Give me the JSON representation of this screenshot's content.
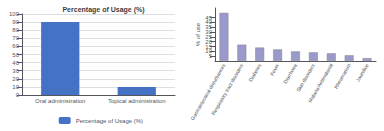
{
  "chart_data": [
    {
      "type": "bar",
      "title": "Percentage of Usage (%)",
      "categories": [
        "Oral administration",
        "Topical administration"
      ],
      "series": [
        {
          "name": "Percentage of Usage (%)",
          "color": "#4472C4",
          "values": [
            90,
            10
          ]
        }
      ],
      "ylim": [
        0,
        100
      ],
      "yticks": [
        0,
        10,
        20,
        30,
        40,
        50,
        60,
        70,
        80,
        90,
        100
      ],
      "grid": true,
      "legend": "bottom"
    },
    {
      "type": "bar",
      "ylabel": "% of use",
      "categories": [
        "Gastrointestinal disturbances",
        "Respiratory tract disorders",
        "Diabetes",
        "Fever",
        "Diarrhoea",
        "Skin disorders",
        "Malaria/Antimalarial",
        "Rheumatism",
        "Jaundice"
      ],
      "values": [
        50,
        17,
        14,
        12,
        10,
        9,
        8,
        6,
        3
      ],
      "color": "#9999CC",
      "ylim": [
        0,
        55
      ],
      "yticks": [
        0,
        5,
        10,
        15,
        20,
        25,
        30,
        35,
        40,
        45,
        50
      ],
      "grid": false
    }
  ]
}
